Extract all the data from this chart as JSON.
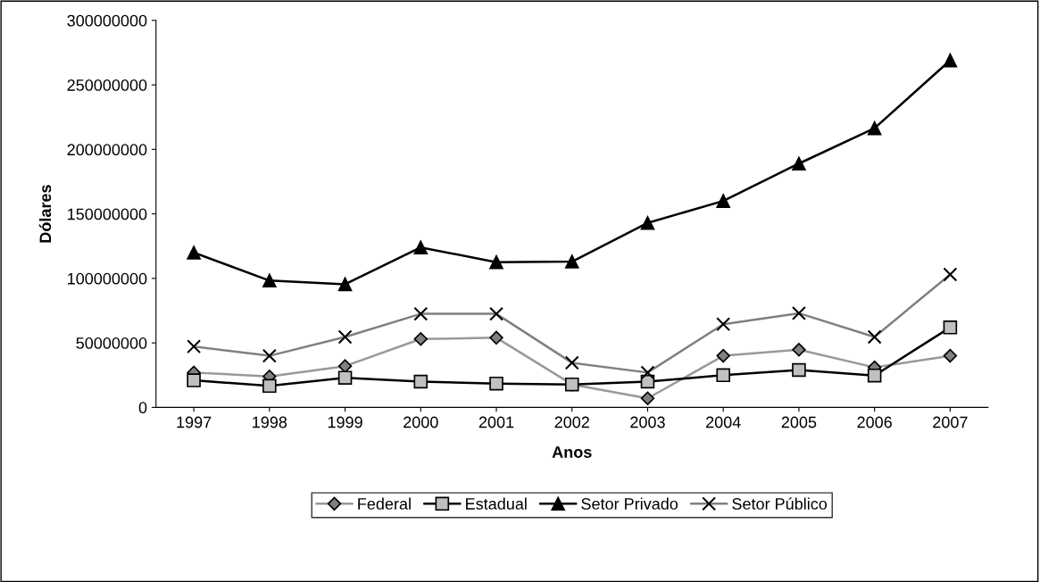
{
  "chart_data": {
    "type": "line",
    "xlabel": "Anos",
    "ylabel": "Dólares",
    "categories": [
      "1997",
      "1998",
      "1999",
      "2000",
      "2001",
      "2002",
      "2003",
      "2004",
      "2005",
      "2006",
      "2007"
    ],
    "series": [
      {
        "name": "Federal",
        "color": "#999999",
        "marker": "diamond",
        "values": [
          27000000,
          24000000,
          32000000,
          53000000,
          54000000,
          17800000,
          7000000,
          40000000,
          44700000,
          31000000,
          40000000
        ]
      },
      {
        "name": "Estadual",
        "color": "#000000",
        "marker": "square",
        "values": [
          21000000,
          16700000,
          23000000,
          20000000,
          18500000,
          17800000,
          20000000,
          25000000,
          29000000,
          24700000,
          62000000
        ]
      },
      {
        "name": "Setor Privado",
        "color": "#000000",
        "marker": "triangle",
        "values": [
          120000000,
          98300000,
          95500000,
          124000000,
          112600000,
          113000000,
          143000000,
          160000000,
          189000000,
          216400000,
          269000000
        ]
      },
      {
        "name": "Setor Público",
        "color": "#808080",
        "marker": "cross",
        "values": [
          47200000,
          40000000,
          54600000,
          72500000,
          72500000,
          34600000,
          27000000,
          64500000,
          73000000,
          54600000,
          103000000
        ]
      }
    ],
    "ylim": [
      0,
      300000000
    ],
    "yticks": [
      0,
      50000000,
      100000000,
      150000000,
      200000000,
      250000000,
      300000000
    ],
    "grid": false,
    "legend": "bottom",
    "line_style": "solid"
  }
}
